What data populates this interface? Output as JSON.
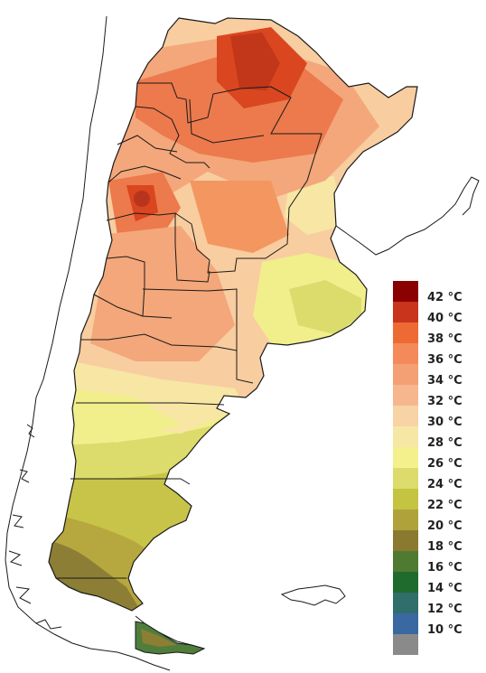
{
  "map": {
    "country": "Argentina",
    "variable": "temperature",
    "colors": {
      "hot_core": "#d9461f",
      "hot": "#ec7a4c",
      "warm": "#f3a77a",
      "mild": "#f8cda0",
      "pale": "#f7e6a4",
      "yellow": "#f1ee8c",
      "yellow_green": "#d7d56b",
      "olive": "#b7b23c",
      "olive_dark": "#8c7e34",
      "green": "#4f7d3a",
      "coast_line": "#1a1a1a"
    }
  },
  "legend": {
    "items": [
      {
        "label": "42 °C",
        "color": "#8b0000"
      },
      {
        "label": "40 °C",
        "color": "#c8341c"
      },
      {
        "label": "38 °C",
        "color": "#ee6a34"
      },
      {
        "label": "36 °C",
        "color": "#f48a5a"
      },
      {
        "label": "34 °C",
        "color": "#f59f74"
      },
      {
        "label": "32 °C",
        "color": "#f7b78e"
      },
      {
        "label": "30 °C",
        "color": "#f8d3a5"
      },
      {
        "label": "28 °C",
        "color": "#f7e7a5"
      },
      {
        "label": "26 °C",
        "color": "#f4f18c"
      },
      {
        "label": "24 °C",
        "color": "#dcdc6c"
      },
      {
        "label": "22 °C",
        "color": "#c4c440"
      },
      {
        "label": "20 °C",
        "color": "#b0a23a"
      },
      {
        "label": "18 °C",
        "color": "#8a7a30"
      },
      {
        "label": "16 °C",
        "color": "#4e7a32"
      },
      {
        "label": "14 °C",
        "color": "#1f6b2e"
      },
      {
        "label": "12 °C",
        "color": "#2f6e6a"
      },
      {
        "label": "10 °C",
        "color": "#3a68a0"
      },
      {
        "label": "",
        "color": "#8a8a8a"
      }
    ]
  }
}
